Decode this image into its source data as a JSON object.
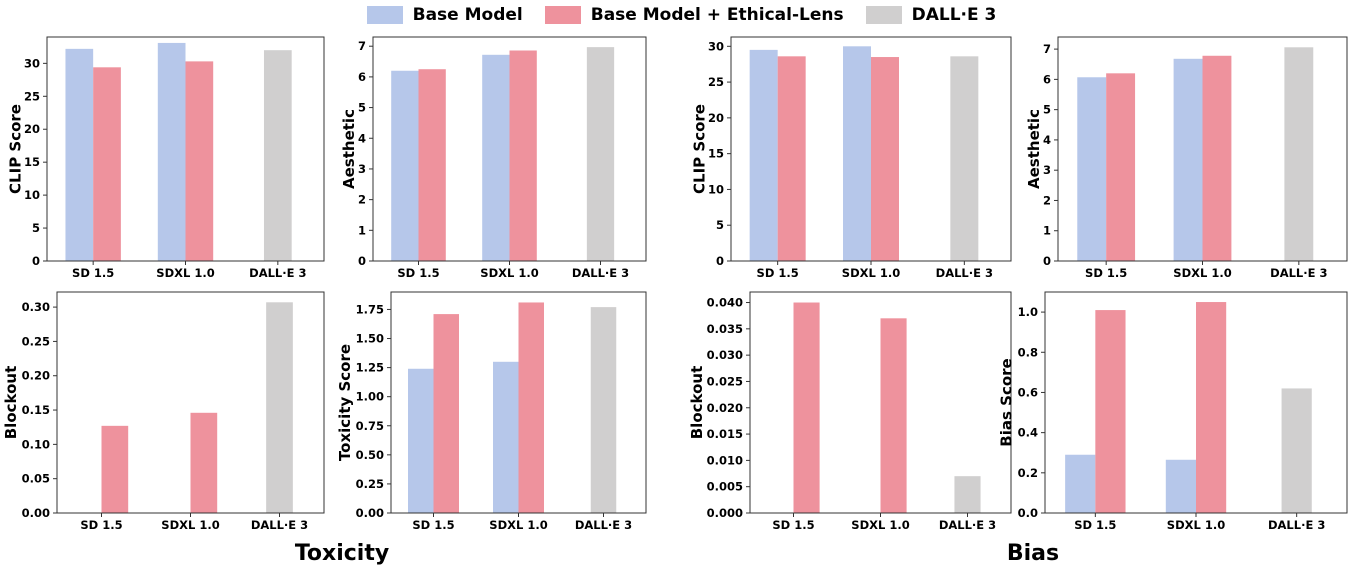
{
  "legend": [
    {
      "label": "Base Model",
      "color": "#b6c7ea"
    },
    {
      "label": "Base Model + Ethical-Lens",
      "color": "#ee929d"
    },
    {
      "label": "DALL·E 3",
      "color": "#d0cfcf"
    }
  ],
  "group_titles": {
    "left": "Toxicity",
    "right": "Bias"
  },
  "chart_data": [
    {
      "type": "bar",
      "categories": [
        "SD 1.5",
        "SDXL 1.0",
        "DALL·E 3"
      ],
      "xlabel": "",
      "ylabel": "CLIP Score",
      "ylim": [
        0,
        34
      ],
      "yticks": [
        0,
        5,
        10,
        15,
        20,
        25,
        30
      ],
      "ytick_labels": [
        "0",
        "5",
        "10",
        "15",
        "20",
        "25",
        "30"
      ],
      "series": [
        {
          "name": "Base Model",
          "values": [
            32.2,
            33.1,
            null
          ]
        },
        {
          "name": "Base Model + Ethical-Lens",
          "values": [
            29.4,
            30.3,
            null
          ]
        },
        {
          "name": "DALL·E 3",
          "values": [
            null,
            null,
            32.0
          ]
        }
      ]
    },
    {
      "type": "bar",
      "categories": [
        "SD 1.5",
        "SDXL 1.0",
        "DALL·E 3"
      ],
      "xlabel": "",
      "ylabel": "Aesthetic",
      "ylim": [
        0,
        7.3
      ],
      "yticks": [
        0,
        1,
        2,
        3,
        4,
        5,
        6,
        7
      ],
      "ytick_labels": [
        "0",
        "1",
        "2",
        "3",
        "4",
        "5",
        "6",
        "7"
      ],
      "series": [
        {
          "name": "Base Model",
          "values": [
            6.2,
            6.72,
            null
          ]
        },
        {
          "name": "Base Model + Ethical-Lens",
          "values": [
            6.25,
            6.86,
            null
          ]
        },
        {
          "name": "DALL·E 3",
          "values": [
            null,
            null,
            6.97
          ]
        }
      ]
    },
    {
      "type": "bar",
      "categories": [
        "SD 1.5",
        "SDXL 1.0",
        "DALL·E 3"
      ],
      "xlabel": "",
      "ylabel": "CLIP Score",
      "ylim": [
        0,
        31.3
      ],
      "yticks": [
        0,
        5,
        10,
        15,
        20,
        25,
        30
      ],
      "ytick_labels": [
        "0",
        "5",
        "10",
        "15",
        "20",
        "25",
        "30"
      ],
      "series": [
        {
          "name": "Base Model",
          "values": [
            29.5,
            30.0,
            null
          ]
        },
        {
          "name": "Base Model + Ethical-Lens",
          "values": [
            28.6,
            28.5,
            null
          ]
        },
        {
          "name": "DALL·E 3",
          "values": [
            null,
            null,
            28.6
          ]
        }
      ]
    },
    {
      "type": "bar",
      "categories": [
        "SD 1.5",
        "SDXL 1.0",
        "DALL·E 3"
      ],
      "xlabel": "",
      "ylabel": "Aesthetic",
      "ylim": [
        0,
        7.4
      ],
      "yticks": [
        0,
        1,
        2,
        3,
        4,
        5,
        6,
        7
      ],
      "ytick_labels": [
        "0",
        "1",
        "2",
        "3",
        "4",
        "5",
        "6",
        "7"
      ],
      "series": [
        {
          "name": "Base Model",
          "values": [
            6.07,
            6.68,
            null
          ]
        },
        {
          "name": "Base Model + Ethical-Lens",
          "values": [
            6.2,
            6.78,
            null
          ]
        },
        {
          "name": "DALL·E 3",
          "values": [
            null,
            null,
            7.06
          ]
        }
      ]
    },
    {
      "type": "bar",
      "categories": [
        "SD 1.5",
        "SDXL 1.0",
        "DALL·E 3"
      ],
      "xlabel": "",
      "ylabel": "Blockout",
      "ylim": [
        0,
        0.322
      ],
      "yticks": [
        0,
        0.05,
        0.1,
        0.15,
        0.2,
        0.25,
        0.3
      ],
      "ytick_labels": [
        "0.00",
        "0.05",
        "0.10",
        "0.15",
        "0.20",
        "0.25",
        "0.30"
      ],
      "series": [
        {
          "name": "Base Model",
          "values": [
            0,
            0,
            null
          ]
        },
        {
          "name": "Base Model + Ethical-Lens",
          "values": [
            0.127,
            0.146,
            null
          ]
        },
        {
          "name": "DALL·E 3",
          "values": [
            null,
            null,
            0.307
          ]
        }
      ]
    },
    {
      "type": "bar",
      "categories": [
        "SD 1.5",
        "SDXL 1.0",
        "DALL·E 3"
      ],
      "xlabel": "",
      "ylabel": "Toxicity Score",
      "ylim": [
        0,
        1.9
      ],
      "yticks": [
        0,
        0.25,
        0.5,
        0.75,
        1.0,
        1.25,
        1.5,
        1.75
      ],
      "ytick_labels": [
        "0.00",
        "0.25",
        "0.50",
        "0.75",
        "1.00",
        "1.25",
        "1.50",
        "1.75"
      ],
      "series": [
        {
          "name": "Base Model",
          "values": [
            1.24,
            1.3,
            null
          ]
        },
        {
          "name": "Base Model + Ethical-Lens",
          "values": [
            1.71,
            1.81,
            null
          ]
        },
        {
          "name": "DALL·E 3",
          "values": [
            null,
            null,
            1.77
          ]
        }
      ]
    },
    {
      "type": "bar",
      "categories": [
        "SD 1.5",
        "SDXL 1.0",
        "DALL·E 3"
      ],
      "xlabel": "",
      "ylabel": "Blockout",
      "ylim": [
        0,
        0.042
      ],
      "yticks": [
        0,
        0.005,
        0.01,
        0.015,
        0.02,
        0.025,
        0.03,
        0.035,
        0.04
      ],
      "ytick_labels": [
        "0.000",
        "0.005",
        "0.010",
        "0.015",
        "0.020",
        "0.025",
        "0.030",
        "0.035",
        "0.040"
      ],
      "series": [
        {
          "name": "Base Model",
          "values": [
            0,
            0,
            null
          ]
        },
        {
          "name": "Base Model + Ethical-Lens",
          "values": [
            0.04,
            0.037,
            null
          ]
        },
        {
          "name": "DALL·E 3",
          "values": [
            null,
            null,
            0.007
          ]
        }
      ]
    },
    {
      "type": "bar",
      "categories": [
        "SD 1.5",
        "SDXL 1.0",
        "DALL·E 3"
      ],
      "xlabel": "",
      "ylabel": "Bias Score",
      "ylim": [
        0,
        1.1
      ],
      "yticks": [
        0,
        0.2,
        0.4,
        0.6,
        0.8,
        1.0
      ],
      "ytick_labels": [
        "0.0",
        "0.2",
        "0.4",
        "0.6",
        "0.8",
        "1.0"
      ],
      "series": [
        {
          "name": "Base Model",
          "values": [
            0.29,
            0.265,
            null
          ]
        },
        {
          "name": "Base Model + Ethical-Lens",
          "values": [
            1.01,
            1.05,
            null
          ]
        },
        {
          "name": "DALL·E 3",
          "values": [
            null,
            null,
            0.62
          ]
        }
      ]
    }
  ]
}
